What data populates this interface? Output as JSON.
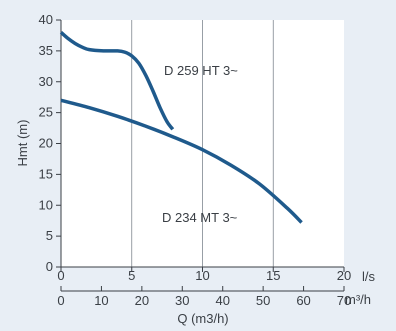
{
  "colors": {
    "background": "#e8eef5",
    "plot_background": "#ffffff",
    "axis": "#3a3f45",
    "grid": "#7f8790",
    "curve": "#1f5a8c"
  },
  "chart_data": {
    "type": "line",
    "title": "",
    "ylabel": "Hmt (m)",
    "xlabel": "Q (m3/h)",
    "x_primary_unit": "l/s",
    "x_secondary_unit": "m³/h",
    "xlim_ls": [
      0,
      20
    ],
    "xlim_m3h": [
      0,
      70
    ],
    "ylim": [
      0,
      40
    ],
    "x_ticks_ls": [
      "0",
      "5",
      "10",
      "15",
      "20"
    ],
    "x_ticks_m3h": [
      "0",
      "10",
      "20",
      "30",
      "40",
      "50",
      "60",
      "70"
    ],
    "y_ticks": [
      "0",
      "5",
      "10",
      "15",
      "20",
      "25",
      "30",
      "35",
      "40"
    ],
    "grid": "vertical",
    "grid_x_values_ls": [
      5,
      10,
      15
    ],
    "series": [
      {
        "name": "D 259 HT 3~",
        "x_unit": "l/s",
        "x": [
          0,
          0.5,
          1,
          1.5,
          2,
          3,
          4,
          4.5,
          5,
          5.5,
          6,
          6.5,
          7,
          7.5,
          7.9
        ],
        "y": [
          38,
          37,
          36.2,
          35.6,
          35.2,
          35,
          35,
          34.8,
          34.2,
          33,
          31,
          28.5,
          25.8,
          23.5,
          22.3
        ]
      },
      {
        "name": "D 234 MT 3~",
        "x_unit": "l/s",
        "x": [
          0,
          2,
          4,
          6,
          8,
          10,
          12,
          14,
          16,
          17
        ],
        "y": [
          27,
          25.8,
          24.4,
          22.8,
          21,
          19,
          16.5,
          13.5,
          9.5,
          7.2
        ]
      }
    ]
  }
}
